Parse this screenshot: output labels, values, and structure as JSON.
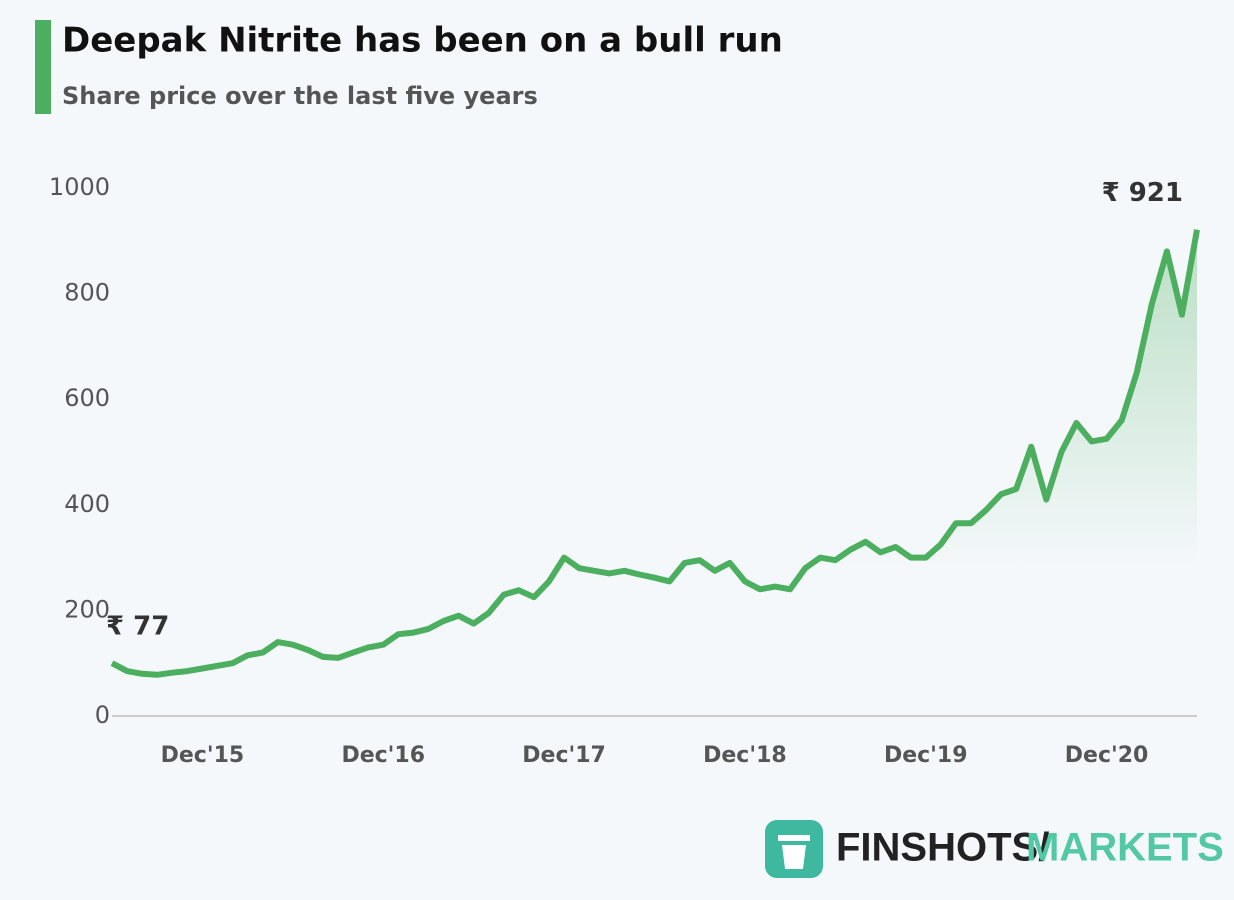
{
  "chart_data": {
    "type": "line",
    "title": "Deepak Nitrite has been on a bull run",
    "subtitle": "Share price over the last five years",
    "categories": [
      null,
      null,
      null,
      null,
      null,
      null,
      "Dec'15",
      null,
      null,
      null,
      null,
      null,
      null,
      null,
      null,
      null,
      null,
      null,
      "Dec'16",
      null,
      null,
      null,
      null,
      null,
      null,
      null,
      null,
      null,
      null,
      null,
      "Dec'17",
      null,
      null,
      null,
      null,
      null,
      null,
      null,
      null,
      null,
      null,
      null,
      "Dec'18",
      null,
      null,
      null,
      null,
      null,
      null,
      null,
      null,
      null,
      null,
      null,
      "Dec'19",
      null,
      null,
      null,
      null,
      null,
      null,
      null,
      null,
      null,
      null,
      null,
      "Dec'20",
      null,
      null,
      null,
      null,
      null,
      null
    ],
    "values": [
      100,
      85,
      80,
      78,
      82,
      85,
      90,
      95,
      100,
      115,
      120,
      140,
      135,
      125,
      112,
      110,
      120,
      130,
      135,
      155,
      158,
      165,
      180,
      190,
      175,
      195,
      230,
      238,
      225,
      255,
      300,
      280,
      275,
      270,
      275,
      268,
      262,
      255,
      290,
      295,
      275,
      290,
      255,
      240,
      245,
      240,
      280,
      300,
      295,
      315,
      330,
      310,
      320,
      300,
      300,
      325,
      365,
      365,
      390,
      420,
      430,
      510,
      410,
      500,
      555,
      520,
      525,
      560,
      650,
      780,
      880,
      760,
      921
    ],
    "color": "#4caf5f",
    "ylim": [
      0,
      1000
    ],
    "yticks": [
      0,
      200,
      400,
      600,
      800,
      1000
    ],
    "annotations": [
      "₹ 77",
      "₹ 921"
    ]
  },
  "branding": {
    "name": "FINSHOTS/",
    "section": "MARKETS"
  }
}
